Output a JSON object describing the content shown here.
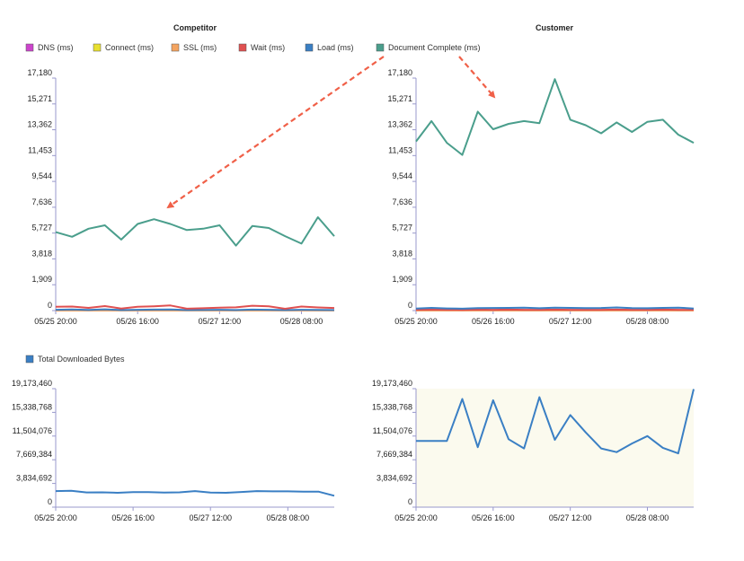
{
  "colors": {
    "dns": "#cc44cc",
    "connect": "#e8e030",
    "ssl": "#f4a460",
    "wait": "#e05050",
    "load": "#3a7fc4",
    "doc": "#4a9e8c",
    "highlight_bg": "#fbfaee",
    "arrow": "#f06048",
    "axis": "#9999cc"
  },
  "timing_legend": [
    {
      "label": "DNS (ms)",
      "color_key": "dns"
    },
    {
      "label": "Connect (ms)",
      "color_key": "connect"
    },
    {
      "label": "SSL (ms)",
      "color_key": "ssl"
    },
    {
      "label": "Wait (ms)",
      "color_key": "wait"
    },
    {
      "label": "Load (ms)",
      "color_key": "load"
    },
    {
      "label": "Document Complete (ms)",
      "color_key": "doc"
    }
  ],
  "bytes_legend": [
    {
      "label": "Total Downloaded Bytes",
      "color_key": "load"
    }
  ],
  "chart_data": [
    {
      "id": "competitor-timing",
      "type": "line",
      "title": "Competitor",
      "xlabel": "",
      "ylabel": "",
      "ylim": [
        0,
        17180
      ],
      "y_ticks": [
        "0",
        "1,909",
        "3,818",
        "5,727",
        "7,636",
        "9,544",
        "11,453",
        "13,362",
        "15,271",
        "17,180"
      ],
      "x_ticks": [
        "05/25 20:00",
        "05/26 16:00",
        "05/27 12:00",
        "05/28 08:00"
      ],
      "x_tick_index": [
        0,
        5,
        10,
        15
      ],
      "series": [
        {
          "key": "doc",
          "name": "Document Complete (ms)",
          "values": [
            5800,
            5450,
            6050,
            6300,
            5250,
            6400,
            6750,
            6400,
            5950,
            6050,
            6300,
            4800,
            6250,
            6100,
            5500,
            4950,
            6900,
            5500
          ]
        },
        {
          "key": "wait",
          "name": "Wait (ms)",
          "values": [
            280,
            300,
            200,
            330,
            150,
            280,
            320,
            380,
            140,
            170,
            220,
            240,
            360,
            320,
            130,
            300,
            230,
            190
          ]
        },
        {
          "key": "load",
          "name": "Load (ms)",
          "values": [
            60,
            80,
            50,
            90,
            40,
            60,
            70,
            80,
            40,
            50,
            60,
            40,
            70,
            60,
            40,
            60,
            50,
            40
          ]
        },
        {
          "key": "ssl",
          "name": "SSL (ms)",
          "values": [
            20,
            20,
            20,
            20,
            20,
            20,
            20,
            20,
            20,
            20,
            20,
            20,
            20,
            20,
            20,
            20,
            20,
            20
          ]
        },
        {
          "key": "connect",
          "name": "Connect (ms)",
          "values": [
            10,
            10,
            10,
            10,
            10,
            10,
            10,
            10,
            10,
            10,
            10,
            10,
            10,
            10,
            10,
            10,
            10,
            10
          ]
        },
        {
          "key": "dns",
          "name": "DNS (ms)",
          "values": [
            5,
            5,
            5,
            5,
            5,
            5,
            5,
            5,
            5,
            5,
            5,
            5,
            5,
            5,
            5,
            5,
            5,
            5
          ]
        }
      ]
    },
    {
      "id": "customer-timing",
      "type": "line",
      "title": "Customer",
      "xlabel": "",
      "ylabel": "",
      "ylim": [
        0,
        17180
      ],
      "y_ticks": [
        "0",
        "1,909",
        "3,818",
        "5,727",
        "7,636",
        "9,544",
        "11,453",
        "13,362",
        "15,271",
        "17,180"
      ],
      "x_ticks": [
        "05/25 20:00",
        "05/26 16:00",
        "05/27 12:00",
        "05/28 08:00"
      ],
      "x_tick_index": [
        0,
        5,
        10,
        15
      ],
      "series": [
        {
          "key": "doc",
          "name": "Document Complete (ms)",
          "values": [
            12500,
            14000,
            12400,
            11500,
            14700,
            13400,
            13800,
            14000,
            13850,
            17100,
            14100,
            13700,
            13100,
            13900,
            13200,
            13950,
            14100,
            13000,
            12400
          ]
        },
        {
          "key": "load",
          "name": "Load (ms)",
          "values": [
            150,
            200,
            160,
            140,
            180,
            190,
            200,
            210,
            170,
            220,
            200,
            180,
            190,
            230,
            180,
            170,
            200,
            220,
            150
          ]
        },
        {
          "key": "wait",
          "name": "Wait (ms)",
          "values": [
            60,
            70,
            60,
            50,
            70,
            60,
            70,
            60,
            60,
            70,
            60,
            60,
            60,
            70,
            60,
            60,
            70,
            60,
            60
          ]
        },
        {
          "key": "ssl",
          "name": "SSL (ms)",
          "values": [
            20,
            20,
            20,
            20,
            20,
            20,
            20,
            20,
            20,
            20,
            20,
            20,
            20,
            20,
            20,
            20,
            20,
            20,
            20
          ]
        },
        {
          "key": "connect",
          "name": "Connect (ms)",
          "values": [
            10,
            10,
            10,
            10,
            10,
            10,
            10,
            10,
            10,
            10,
            10,
            10,
            10,
            10,
            10,
            10,
            10,
            10,
            10
          ]
        },
        {
          "key": "dns",
          "name": "DNS (ms)",
          "values": [
            5,
            5,
            5,
            5,
            5,
            5,
            5,
            5,
            5,
            5,
            5,
            5,
            5,
            5,
            5,
            5,
            5,
            5,
            5
          ]
        }
      ]
    },
    {
      "id": "competitor-bytes",
      "type": "line",
      "title": "",
      "xlabel": "",
      "ylabel": "",
      "ylim": [
        0,
        19173460
      ],
      "y_ticks": [
        "0",
        "3,834,692",
        "7,669,384",
        "11,504,076",
        "15,338,768",
        "19,173,460"
      ],
      "x_ticks": [
        "05/25 20:00",
        "05/26 16:00",
        "05/27 12:00",
        "05/28 08:00"
      ],
      "x_tick_index": [
        0,
        5,
        10,
        15
      ],
      "series": [
        {
          "key": "load",
          "name": "Total Downloaded Bytes",
          "values": [
            2600000,
            2650000,
            2380000,
            2400000,
            2320000,
            2420000,
            2430000,
            2350000,
            2400000,
            2600000,
            2360000,
            2330000,
            2450000,
            2600000,
            2550000,
            2560000,
            2520000,
            2500000,
            1850000
          ]
        }
      ]
    },
    {
      "id": "customer-bytes",
      "type": "line",
      "title": "",
      "xlabel": "",
      "ylabel": "",
      "ylim": [
        0,
        19173460
      ],
      "y_ticks": [
        "0",
        "3,834,692",
        "7,669,384",
        "11,504,076",
        "15,338,768",
        "19,173,460"
      ],
      "x_ticks": [
        "05/25 20:00",
        "05/26 16:00",
        "05/27 12:00",
        "05/28 08:00"
      ],
      "x_tick_index": [
        0,
        5,
        10,
        15
      ],
      "highlight_background": true,
      "series": [
        {
          "key": "load",
          "name": "Total Downloaded Bytes",
          "values": [
            10700000,
            10700000,
            10700000,
            17500000,
            9700000,
            17300000,
            11000000,
            9500000,
            17800000,
            10900000,
            14900000,
            12100000,
            9500000,
            8900000,
            10300000,
            11500000,
            9600000,
            8700000,
            19100000
          ]
        }
      ]
    }
  ]
}
